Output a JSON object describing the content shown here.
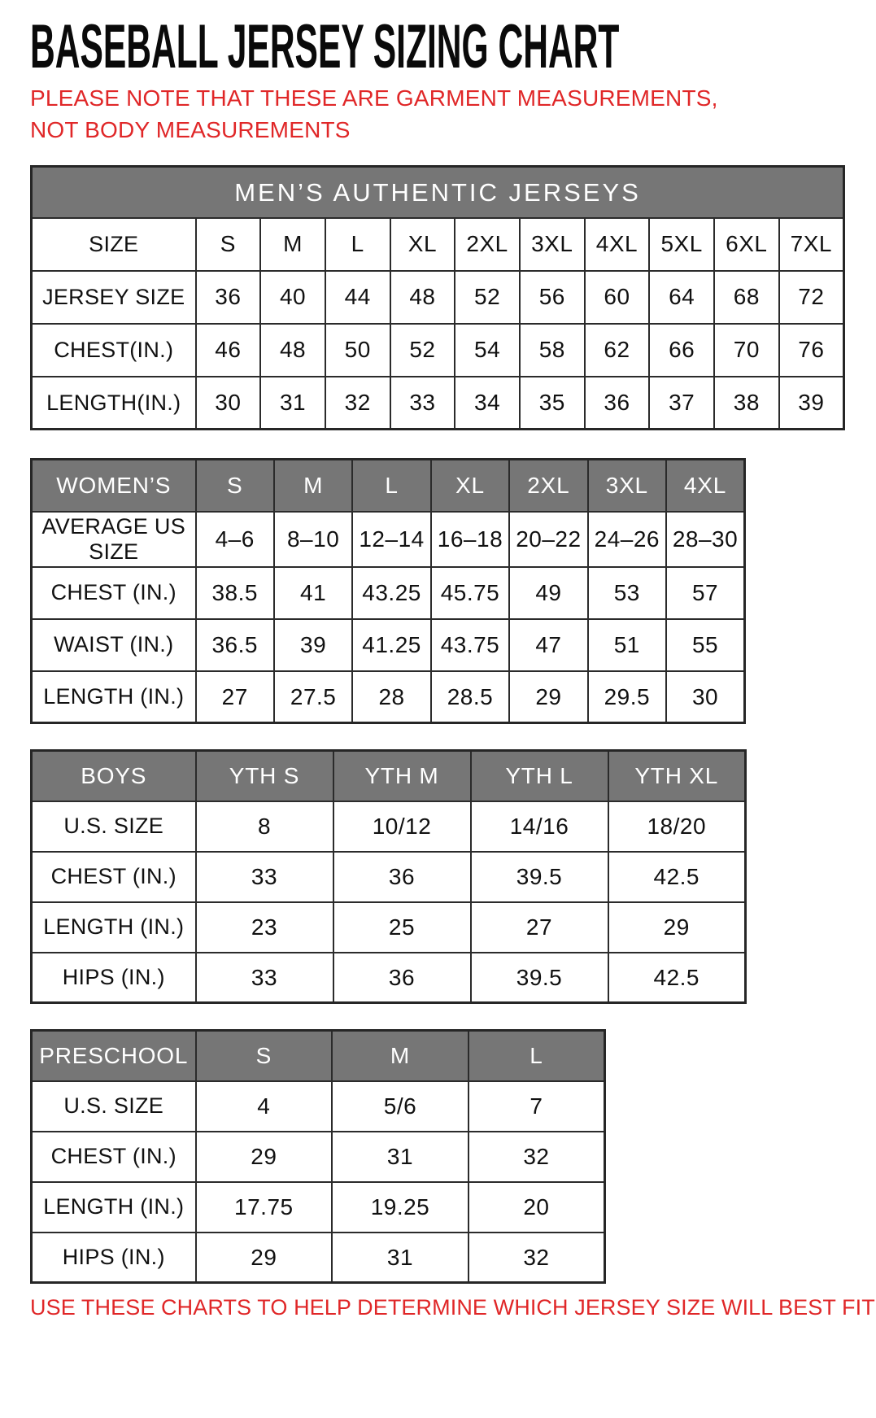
{
  "page": {
    "title": "BASEBALL JERSEY SIZING CHART",
    "note": "PLEASE NOTE THAT THESE ARE GARMENT MEASUREMENTS, NOT BODY MEASUREMENTS",
    "footer": "USE THESE CHARTS TO HELP DETERMINE WHICH JERSEY SIZE WILL BEST FIT YOU."
  },
  "colors": {
    "accent_red": "#e02728",
    "header_gray": "#767676",
    "header_text": "#ffffff",
    "border": "#2b2b2b",
    "text": "#111111"
  },
  "tables": {
    "mens": {
      "title": "MEN’S AUTHENTIC JERSEYS",
      "rows": [
        {
          "label": "SIZE",
          "values": [
            "S",
            "M",
            "L",
            "XL",
            "2XL",
            "3XL",
            "4XL",
            "5XL",
            "6XL",
            "7XL"
          ]
        },
        {
          "label": "JERSEY SIZE",
          "values": [
            "36",
            "40",
            "44",
            "48",
            "52",
            "56",
            "60",
            "64",
            "68",
            "72"
          ]
        },
        {
          "label": "CHEST(IN.)",
          "values": [
            "46",
            "48",
            "50",
            "52",
            "54",
            "58",
            "62",
            "66",
            "70",
            "76"
          ]
        },
        {
          "label": "LENGTH(IN.)",
          "values": [
            "30",
            "31",
            "32",
            "33",
            "34",
            "35",
            "36",
            "37",
            "38",
            "39"
          ]
        }
      ]
    },
    "womens": {
      "header": {
        "label": "WOMEN’S",
        "values": [
          "S",
          "M",
          "L",
          "XL",
          "2XL",
          "3XL",
          "4XL"
        ]
      },
      "rows": [
        {
          "label": "AVERAGE US SIZE",
          "values": [
            "4–6",
            "8–10",
            "12–14",
            "16–18",
            "20–22",
            "24–26",
            "28–30"
          ]
        },
        {
          "label": "CHEST (IN.)",
          "values": [
            "38.5",
            "41",
            "43.25",
            "45.75",
            "49",
            "53",
            "57"
          ]
        },
        {
          "label": "WAIST (IN.)",
          "values": [
            "36.5",
            "39",
            "41.25",
            "43.75",
            "47",
            "51",
            "55"
          ]
        },
        {
          "label": "LENGTH (IN.)",
          "values": [
            "27",
            "27.5",
            "28",
            "28.5",
            "29",
            "29.5",
            "30"
          ]
        }
      ]
    },
    "boys": {
      "header": {
        "label": "BOYS",
        "values": [
          "YTH S",
          "YTH M",
          "YTH L",
          "YTH XL"
        ]
      },
      "rows": [
        {
          "label": "U.S. SIZE",
          "values": [
            "8",
            "10/12",
            "14/16",
            "18/20"
          ]
        },
        {
          "label": "CHEST (IN.)",
          "values": [
            "33",
            "36",
            "39.5",
            "42.5"
          ]
        },
        {
          "label": "LENGTH (IN.)",
          "values": [
            "23",
            "25",
            "27",
            "29"
          ]
        },
        {
          "label": "HIPS (IN.)",
          "values": [
            "33",
            "36",
            "39.5",
            "42.5"
          ]
        }
      ]
    },
    "preschool": {
      "header": {
        "label": "PRESCHOOL",
        "values": [
          "S",
          "M",
          "L"
        ]
      },
      "rows": [
        {
          "label": "U.S. SIZE",
          "values": [
            "4",
            "5/6",
            "7"
          ]
        },
        {
          "label": "CHEST (IN.)",
          "values": [
            "29",
            "31",
            "32"
          ]
        },
        {
          "label": "LENGTH (IN.)",
          "values": [
            "17.75",
            "19.25",
            "20"
          ]
        },
        {
          "label": "HIPS (IN.)",
          "values": [
            "29",
            "31",
            "32"
          ]
        }
      ]
    }
  }
}
